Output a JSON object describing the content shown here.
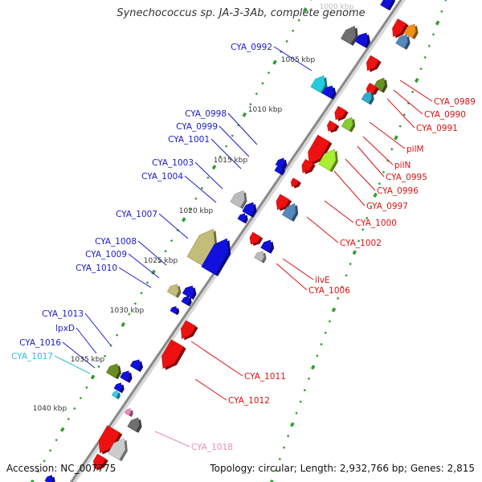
{
  "title": "Synechococcus sp. JA-3-3Ab, complete genome",
  "footer": {
    "accession": "Accession: NC_007775",
    "summary": "Topology: circular; Length: 2,932,766 bp; Genes: 2,815"
  },
  "colors": {
    "backbone": "#8a8a8a",
    "tick_dot": "#2f9e2f",
    "left_label": "#1a1acc",
    "right_label": "#dd1111",
    "cyan_label": "#33bbdd",
    "pink_label": "#ee88bb",
    "forward_gene": "#1111dd",
    "reverse_gene": "#ee1111"
  },
  "scale": {
    "ticks": [
      "1000 kbp",
      "1005 kbp",
      "1010 kbp",
      "1015 kbp",
      "1020 kbp",
      "1025 kbp",
      "1030 kbp",
      "1035 kbp",
      "1040 kbp"
    ]
  },
  "labels_left": [
    "CYA_0992",
    "CYA_0998",
    "CYA_0999",
    "CYA_1001",
    "CYA_1003",
    "CYA_1004",
    "CYA_1007",
    "CYA_1008",
    "CYA_1009",
    "CYA_1010",
    "CYA_1013",
    "lpxD",
    "CYA_1016",
    "CYA_1017"
  ],
  "labels_right": [
    "CYA_0989",
    "CYA_0990",
    "CYA_0991",
    "pilM",
    "pilN",
    "CYA_0995",
    "CYA_0996",
    "CYA_0997",
    "CYA_1000",
    "CYA_1002",
    "ilvE",
    "CYA_1006",
    "CYA_1011",
    "CYA_1012",
    "CYA_1018"
  ]
}
